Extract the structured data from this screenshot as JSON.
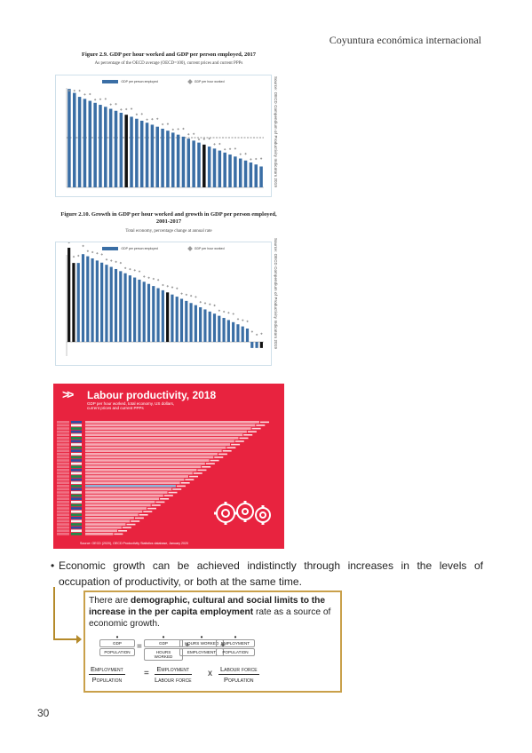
{
  "header": {
    "title": "Coyuntura económica internacional"
  },
  "figure1": {
    "title": "Figure 2.9. GDP per hour worked and GDP per person employed, 2017",
    "subtitle": "As percentage of the OECD average (OECD=100), current prices and current PPPs",
    "source": "Source: OECD Compendium of Productivity Indicators 2019",
    "legend": [
      "GDP per person employed",
      "GDP per hour worked"
    ],
    "colors": {
      "bar": "#3a6ea5",
      "highlight": "#111111",
      "marker": "#9a9a9a"
    }
  },
  "figure2": {
    "title": "Figure 2.10. Growth in GDP per hour worked and growth in GDP per person employed, 2001-2017",
    "subtitle": "Total economy, percentage change at annual rate",
    "source": "Source: OECD Compendium of Productivity Indicators 2019",
    "legend": [
      "GDP per person employed",
      "GDP per hour worked"
    ]
  },
  "infographic": {
    "title": "Labour productivity, 2018",
    "subtitle_line1": "GDP per hour worked, total economy, US dollars,",
    "subtitle_line2": "current prices and current PPPs",
    "source": "Source: OECD (2020), OECD Productivity Statistics database, January 2020",
    "colors": {
      "background": "#e8233f",
      "bar": "#f6aab4",
      "highlight": "#8fb4d9"
    }
  },
  "bullet": {
    "text": "Economic growth can be achieved indistinctly through increases in the levels of occupation of productivity, or both at the same time."
  },
  "callout": {
    "text_pre": "There are ",
    "text_bold": "demographic, cultural and social limits to the increase in the per capita employment",
    "text_post": " rate as a source of economic growth.",
    "mini": [
      {
        "num": "GDP",
        "den": "POPULATION"
      },
      {
        "num": "GDP",
        "den": "HOURS WORKED"
      },
      {
        "num": "HOURS WORKED",
        "den": "EMPLOYMENT"
      },
      {
        "num": "EMPLOYMENT",
        "den": "POPULATION"
      }
    ],
    "f1_num": "Employment",
    "f1_den": "Population",
    "eq": "=",
    "f2_num": "Employment",
    "f2_den": "Labour force",
    "times": "x",
    "f3_num": "Labour force",
    "f3_den": "Population",
    "border_color": "#c9a04a"
  },
  "page_number": "30"
}
